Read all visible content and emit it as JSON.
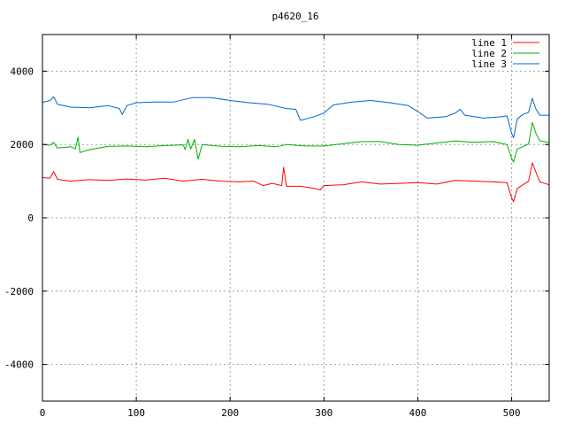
{
  "chart_data": {
    "type": "line",
    "title": "p4620_16",
    "xlabel": "",
    "ylabel": "",
    "xlim": [
      0,
      540
    ],
    "ylim": [
      -5000,
      5000
    ],
    "xticks": [
      0,
      100,
      200,
      300,
      400,
      500
    ],
    "yticks": [
      -4000,
      -2000,
      0,
      2000,
      4000
    ],
    "grid": true,
    "legend_position": "top-right",
    "series": [
      {
        "name": "line 1",
        "color": "#ff0000",
        "points": [
          [
            0,
            1100
          ],
          [
            8,
            1080
          ],
          [
            12,
            1260
          ],
          [
            16,
            1050
          ],
          [
            30,
            1000
          ],
          [
            50,
            1040
          ],
          [
            70,
            1020
          ],
          [
            90,
            1060
          ],
          [
            110,
            1030
          ],
          [
            130,
            1080
          ],
          [
            150,
            1000
          ],
          [
            170,
            1050
          ],
          [
            190,
            1000
          ],
          [
            210,
            980
          ],
          [
            225,
            1000
          ],
          [
            235,
            880
          ],
          [
            245,
            940
          ],
          [
            255,
            880
          ],
          [
            257,
            1380
          ],
          [
            260,
            860
          ],
          [
            275,
            860
          ],
          [
            290,
            800
          ],
          [
            296,
            760
          ],
          [
            300,
            880
          ],
          [
            320,
            900
          ],
          [
            340,
            980
          ],
          [
            360,
            920
          ],
          [
            380,
            940
          ],
          [
            400,
            960
          ],
          [
            420,
            920
          ],
          [
            440,
            1020
          ],
          [
            460,
            1000
          ],
          [
            480,
            980
          ],
          [
            495,
            960
          ],
          [
            500,
            540
          ],
          [
            502,
            440
          ],
          [
            506,
            800
          ],
          [
            512,
            900
          ],
          [
            518,
            1000
          ],
          [
            522,
            1500
          ],
          [
            526,
            1240
          ],
          [
            530,
            980
          ],
          [
            540,
            900
          ]
        ]
      },
      {
        "name": "line 2",
        "color": "#00b000",
        "points": [
          [
            0,
            2000
          ],
          [
            8,
            1980
          ],
          [
            12,
            2060
          ],
          [
            16,
            1900
          ],
          [
            30,
            1940
          ],
          [
            35,
            1880
          ],
          [
            38,
            2200
          ],
          [
            40,
            1780
          ],
          [
            50,
            1860
          ],
          [
            70,
            1950
          ],
          [
            90,
            1960
          ],
          [
            110,
            1940
          ],
          [
            130,
            1970
          ],
          [
            150,
            1990
          ],
          [
            152,
            1860
          ],
          [
            155,
            2140
          ],
          [
            158,
            1880
          ],
          [
            162,
            2140
          ],
          [
            166,
            1600
          ],
          [
            170,
            2000
          ],
          [
            190,
            1950
          ],
          [
            210,
            1940
          ],
          [
            230,
            1970
          ],
          [
            250,
            1940
          ],
          [
            260,
            2000
          ],
          [
            280,
            1960
          ],
          [
            300,
            1960
          ],
          [
            320,
            2020
          ],
          [
            340,
            2080
          ],
          [
            360,
            2080
          ],
          [
            380,
            2000
          ],
          [
            400,
            1980
          ],
          [
            420,
            2040
          ],
          [
            440,
            2100
          ],
          [
            460,
            2060
          ],
          [
            480,
            2080
          ],
          [
            495,
            2000
          ],
          [
            500,
            1620
          ],
          [
            502,
            1520
          ],
          [
            506,
            1880
          ],
          [
            512,
            1940
          ],
          [
            518,
            2020
          ],
          [
            522,
            2600
          ],
          [
            526,
            2300
          ],
          [
            530,
            2100
          ],
          [
            540,
            2060
          ]
        ]
      },
      {
        "name": "line 3",
        "color": "#0066cc",
        "points": [
          [
            0,
            3150
          ],
          [
            8,
            3200
          ],
          [
            12,
            3300
          ],
          [
            16,
            3100
          ],
          [
            30,
            3020
          ],
          [
            50,
            3000
          ],
          [
            70,
            3060
          ],
          [
            82,
            2980
          ],
          [
            85,
            2820
          ],
          [
            90,
            3060
          ],
          [
            100,
            3140
          ],
          [
            120,
            3160
          ],
          [
            140,
            3160
          ],
          [
            160,
            3280
          ],
          [
            180,
            3280
          ],
          [
            200,
            3200
          ],
          [
            220,
            3140
          ],
          [
            240,
            3100
          ],
          [
            260,
            2980
          ],
          [
            270,
            2960
          ],
          [
            275,
            2660
          ],
          [
            290,
            2760
          ],
          [
            300,
            2860
          ],
          [
            310,
            3080
          ],
          [
            330,
            3160
          ],
          [
            350,
            3200
          ],
          [
            370,
            3140
          ],
          [
            390,
            3060
          ],
          [
            400,
            2900
          ],
          [
            410,
            2720
          ],
          [
            430,
            2760
          ],
          [
            440,
            2860
          ],
          [
            445,
            2960
          ],
          [
            450,
            2800
          ],
          [
            470,
            2720
          ],
          [
            490,
            2760
          ],
          [
            495,
            2780
          ],
          [
            500,
            2300
          ],
          [
            502,
            2180
          ],
          [
            506,
            2700
          ],
          [
            512,
            2820
          ],
          [
            518,
            2880
          ],
          [
            522,
            3260
          ],
          [
            526,
            2960
          ],
          [
            530,
            2800
          ],
          [
            540,
            2800
          ]
        ]
      }
    ]
  }
}
